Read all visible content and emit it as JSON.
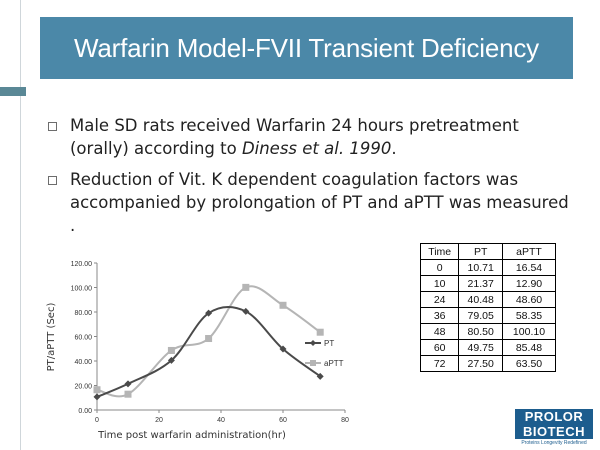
{
  "slide": {
    "title": "Warfarin Model-FVII Transient Deficiency",
    "bullets": [
      {
        "text_before": "Male SD rats received Warfarin 24 hours pretreatment (orally) according  to ",
        "text_italic": "Diness et al. 1990",
        "text_after": "."
      },
      {
        "text_before": "Reduction of Vit. K dependent coagulation factors was accompanied by prolongation of PT and aPTT was measured .",
        "text_italic": "",
        "text_after": ""
      }
    ]
  },
  "chart_data": {
    "type": "line",
    "title": "",
    "xlabel": "Time post warfarin administration(hr)",
    "ylabel": "PT/aPTT (Sec)",
    "xlim": [
      0,
      80
    ],
    "ylim": [
      0,
      120
    ],
    "x_ticks": [
      "0",
      "20",
      "40",
      "60",
      "80"
    ],
    "y_ticks": [
      "0.00",
      "20.00",
      "40.00",
      "60.00",
      "80.00",
      "100.00",
      "120.00"
    ],
    "legend_position": "right",
    "grid": false,
    "smooth": true,
    "x": [
      0,
      10,
      24,
      36,
      48,
      60,
      72
    ],
    "series": [
      {
        "name": "PT",
        "color": "#4a4a4a",
        "marker": "diamond",
        "values": [
          10.71,
          21.37,
          40.48,
          79.05,
          80.5,
          49.75,
          27.5
        ]
      },
      {
        "name": "aPTT",
        "color": "#b5b5b5",
        "marker": "square",
        "values": [
          16.54,
          12.9,
          48.6,
          58.35,
          100.1,
          85.48,
          63.5
        ]
      }
    ]
  },
  "table": {
    "headers": [
      "Time",
      "PT",
      "aPTT"
    ],
    "rows": [
      [
        "0",
        "10.71",
        "16.54"
      ],
      [
        "10",
        "21.37",
        "12.90"
      ],
      [
        "24",
        "40.48",
        "48.60"
      ],
      [
        "36",
        "79.05",
        "58.35"
      ],
      [
        "48",
        "80.50",
        "100.10"
      ],
      [
        "60",
        "49.75",
        "85.48"
      ],
      [
        "72",
        "27.50",
        "63.50"
      ]
    ]
  },
  "logo": {
    "line1": "PROLOR",
    "line2": "BIOTECH",
    "tagline": "Proteins Longevity Redefined",
    "brand_color": "#1d5d8e"
  },
  "theme": {
    "title_bg": "#4b88a8",
    "accent": "#5a8896"
  }
}
